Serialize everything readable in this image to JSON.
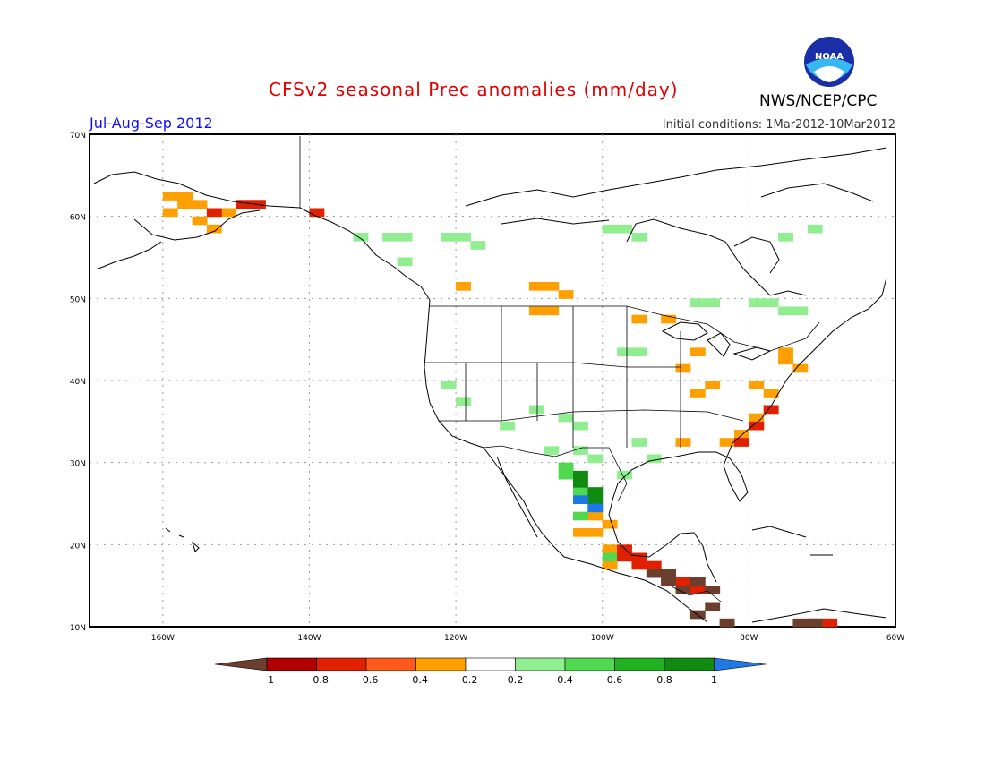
{
  "title": "CFSv2 seasonal Prec anomalies (mm/day)",
  "agency": "NWS/NCEP/CPC",
  "season": "Jul-Aug-Sep 2012",
  "initial_conditions": "Initial conditions: 1Mar2012-10Mar2012",
  "logo_text": "NOAA",
  "lat_labels": [
    "70N",
    "60N",
    "50N",
    "40N",
    "30N",
    "20N",
    "10N"
  ],
  "lon_labels": [
    "160W",
    "140W",
    "120W",
    "100W",
    "80W",
    "60W"
  ],
  "legend": {
    "labels": [
      "-1",
      "-0.8",
      "-0.6",
      "-0.4",
      "-0.2",
      "0.2",
      "0.4",
      "0.6",
      "0.8",
      "1"
    ],
    "colors": [
      "#6b3e2e",
      "#b00000",
      "#e02000",
      "#ff5a1a",
      "#ffa000",
      "#ffffff",
      "#90ee90",
      "#50d850",
      "#20b020",
      "#108a10",
      "#1e78e6"
    ]
  },
  "anomaly_cells": {
    "dry_orange": [
      [
        -160,
        62
      ],
      [
        -158,
        62
      ],
      [
        -158,
        61
      ],
      [
        -156,
        61
      ],
      [
        -154,
        60
      ],
      [
        -152,
        60
      ],
      [
        -150,
        61
      ],
      [
        -148,
        61
      ],
      [
        -160,
        60
      ],
      [
        -156,
        59
      ],
      [
        -154,
        58
      ],
      [
        -140,
        60
      ],
      [
        -120,
        51
      ],
      [
        -110,
        51
      ],
      [
        -108,
        51
      ],
      [
        -106,
        50
      ],
      [
        -108,
        48
      ],
      [
        -110,
        48
      ],
      [
        -96,
        47
      ],
      [
        -92,
        47
      ],
      [
        -88,
        43
      ],
      [
        -90,
        41
      ],
      [
        -88,
        38
      ],
      [
        -86,
        39
      ],
      [
        -80,
        39
      ],
      [
        -78,
        38
      ],
      [
        -78,
        36
      ],
      [
        -80,
        35
      ],
      [
        -80,
        34
      ],
      [
        -82,
        33
      ],
      [
        -84,
        32
      ],
      [
        -90,
        32
      ],
      [
        -74,
        41
      ],
      [
        -76,
        42
      ],
      [
        -76,
        43
      ],
      [
        -102,
        23
      ],
      [
        -102,
        21
      ],
      [
        -104,
        21
      ],
      [
        -100,
        22
      ],
      [
        -100,
        19
      ],
      [
        -100,
        17
      ]
    ],
    "dry_red": [
      [
        -154,
        60
      ],
      [
        -150,
        61
      ],
      [
        -148,
        61
      ],
      [
        -140,
        60
      ],
      [
        -98,
        19
      ],
      [
        -98,
        18
      ],
      [
        -96,
        18
      ],
      [
        -96,
        17
      ],
      [
        -94,
        17
      ],
      [
        -92,
        15
      ],
      [
        -90,
        15
      ],
      [
        -88,
        14
      ],
      [
        -78,
        36
      ],
      [
        -80,
        34
      ],
      [
        -82,
        32
      ],
      [
        -72,
        10
      ],
      [
        -70,
        10
      ]
    ],
    "dry_brown": [
      [
        -94,
        16
      ],
      [
        -92,
        16
      ],
      [
        -92,
        15
      ],
      [
        -90,
        14
      ],
      [
        -88,
        15
      ],
      [
        -86,
        14
      ],
      [
        -86,
        12
      ],
      [
        -88,
        11
      ],
      [
        -84,
        10
      ],
      [
        -74,
        10
      ],
      [
        -72,
        10
      ]
    ],
    "wet_light": [
      [
        -134,
        57
      ],
      [
        -130,
        57
      ],
      [
        -128,
        57
      ],
      [
        -122,
        57
      ],
      [
        -120,
        57
      ],
      [
        -118,
        56
      ],
      [
        -100,
        58
      ],
      [
        -98,
        58
      ],
      [
        -96,
        57
      ],
      [
        -128,
        54
      ],
      [
        -88,
        49
      ],
      [
        -86,
        49
      ],
      [
        -80,
        49
      ],
      [
        -78,
        49
      ],
      [
        -76,
        48
      ],
      [
        -74,
        48
      ],
      [
        -122,
        39
      ],
      [
        -120,
        37
      ],
      [
        -110,
        36
      ],
      [
        -114,
        34
      ],
      [
        -106,
        35
      ],
      [
        -104,
        34
      ],
      [
        -108,
        31
      ],
      [
        -104,
        31
      ],
      [
        -102,
        30
      ],
      [
        -96,
        32
      ],
      [
        -94,
        30
      ],
      [
        -98,
        28
      ],
      [
        -76,
        57
      ],
      [
        -72,
        58
      ],
      [
        -98,
        43
      ],
      [
        -96,
        43
      ]
    ],
    "wet_mid": [
      [
        -106,
        29
      ],
      [
        -106,
        28
      ],
      [
        -104,
        26
      ],
      [
        -104,
        25
      ],
      [
        -102,
        24
      ],
      [
        -104,
        23
      ],
      [
        -100,
        18
      ]
    ],
    "wet_dark": [
      [
        -104,
        28
      ],
      [
        -104,
        27
      ],
      [
        -102,
        26
      ],
      [
        -102,
        25
      ]
    ],
    "wet_blue": [
      [
        -104,
        25
      ],
      [
        -102,
        24
      ]
    ]
  }
}
